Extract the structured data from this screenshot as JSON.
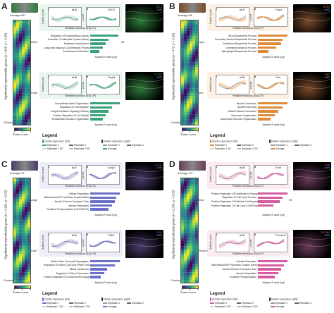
{
  "panels": [
    {
      "letter": "A",
      "avg_label": "Average HP",
      "ylabel": "Significantly reproducible genes (n = 955, p < 0.05)",
      "accent": "#3aa37a",
      "light": "#bfe6cf",
      "img_color": "#2d7a3a",
      "genes": [
        "Kif1D",
        "Pcgf4"
      ],
      "top": {
        "cluster": "cl.4",
        "gene": "Kif1D",
        "cl2": "cl.4"
      },
      "bot": {
        "cluster": "cl.5",
        "gene": "Pcgf4",
        "cl2": "cl.5"
      },
      "micro_top": [
        "KIF1D",
        "DAPI"
      ],
      "micro_bot": [
        "PCGF4",
        "DAPI"
      ],
      "go_top": [
        "Regulation Of Endopeptidase Activity",
        "Activation Of Adenylate Cyclase Activity",
        "Epidermis Development",
        "Long-chain fatty-acyl-CoA Metabolic Process",
        "Keratinocyte Proliferation"
      ],
      "go_top_vals": [
        0.9,
        0.6,
        0.5,
        0.4,
        0.3
      ],
      "go_bot": [
        "Extracellular Matrix Organization",
        "Regulation Of Cell Migration",
        "Integrin-Mediated Signaling Pathway",
        "Positive Regulation Of Cell Motility",
        "Extracellular Structure Organization"
      ],
      "go_bot_vals": [
        0.95,
        0.7,
        0.6,
        0.5,
        0.4
      ],
      "ns_top": "NS"
    },
    {
      "letter": "B",
      "avg_label": "Average IM",
      "ylabel": "Significantly reproducible genes (n = 473, p < 0.05)",
      "accent": "#e08b3a",
      "light": "#f5d2ae",
      "img_color": "#7a4a2a",
      "genes": [
        "Hopx",
        "Des"
      ],
      "top": {
        "cluster": "cl.2",
        "gene": "Hopx",
        "cl2": "cl.2"
      },
      "bot": {
        "cluster": "cl.6",
        "gene": "Des",
        "cl2": "cl.6"
      },
      "micro_top": [
        "HOPX",
        "DAPI"
      ],
      "micro_bot": [
        "DES",
        "DAPI"
      ],
      "go_top": [
        "Sterol Biosynthetic Process",
        "Secondary Alcohol Biosynthetic Process",
        "Cholesterol Biosynthetic Process",
        "Cholesterol Metabolic Process",
        "Sphingolipid Biosynthetic Process"
      ],
      "go_top_vals": [
        0.95,
        0.8,
        0.75,
        0.6,
        0.35
      ],
      "go_bot": [
        "Muscle Contraction",
        "Myofibril Assembly",
        "Striated Muscle Contraction",
        "Sarcomere Organization",
        "Actomyosin Structure Organization"
      ],
      "go_bot_vals": [
        0.95,
        0.8,
        0.65,
        0.55,
        0.4
      ],
      "ns_top": ""
    },
    {
      "letter": "C",
      "avg_label": "Average VF",
      "ylabel": "Significantly reproducible genes (n = 4,301, p < 0.05)",
      "accent": "#6a6fc9",
      "light": "#c9cbee",
      "img_color": "#4a3a6a",
      "genes": [
        "Actg2",
        "Cdk4"
      ],
      "top": {
        "cluster": "cl.2",
        "gene": "Actg2",
        "cl2": "cl.2"
      },
      "bot": {
        "cluster": "cl.4",
        "gene": "Cdk4",
        "cl2": "cl.4"
      },
      "micro_top": [
        "ACTG2",
        "DAPI"
      ],
      "micro_bot": [
        "CDK4",
        "DAPI"
      ],
      "go_top": [
        "Cellular Respiration",
        "Mitochondrial ATP Synthesis Coupled Electron Transport",
        "Aerobic Electron Transport Chain",
        "Aerobic Respiration",
        "Oxidative Phosphorylation (GO:0006119)"
      ],
      "go_top_vals": [
        0.95,
        0.85,
        0.8,
        0.7,
        0.6
      ],
      "go_bot": [
        "Mitotic Sister Chromatid Segregation",
        "Regulation Of Mitotic Cell Cycle Phase Transition",
        "Mitotic Cytokinesis",
        "Regulation Of Gene Expression",
        "Positive Regulation Of Canonical Wnt Signaling Pathway"
      ],
      "go_bot_vals": [
        0.95,
        0.8,
        0.55,
        0.45,
        0.35
      ],
      "ns_top": ""
    },
    {
      "letter": "D",
      "avg_label": "Average OT",
      "ylabel": "Significantly reproducible genes (n = 2,706, p < 0.05)",
      "accent": "#d65aa0",
      "light": "#f2c6dd",
      "img_color": "#6a3a5a",
      "genes": [
        "Emb",
        "Pecam1"
      ],
      "top": {
        "cluster": "cl.8",
        "gene": "Emb",
        "cl2": "cl.8"
      },
      "bot": {
        "cluster": "cl.0",
        "gene": "Pecam1",
        "cl2": "cl.0"
      },
      "micro_top": [
        "EMB",
        "DAPI"
      ],
      "micro_bot": [
        "PECAM1",
        "DAPI"
      ],
      "go_top": [
        "Positive Regulation Of Endothelial Cell Apoptotic Process",
        "Regulation Of Cell Cycle Process",
        "Positive Regulation Of Epithelial Cell Apoptotic Process",
        "Positive Regulation Of Cell Cycle G2/M Phase Transition",
        ""
      ],
      "go_top_vals": [
        0.95,
        0.8,
        0.7,
        0.5,
        0
      ],
      "go_bot": [
        "Cellular Respiration",
        "Mitochondrial ATP Synthesis Coupled Electron Transport",
        "Aerobic Electron Transport Chain",
        "Aerobic Respiration",
        "Oxidative Phosphorylation"
      ],
      "go_bot_vals": [
        0.95,
        0.85,
        0.75,
        0.65,
        0.55
      ],
      "ns_top": "NS"
    }
  ],
  "common": {
    "xlabel": "Relative sections (Epi-LP)",
    "ylabel_scaled": "Scaled z-score",
    "ylabel_z": "z-score",
    "go_x": "Adjusted P-value (log)",
    "go_y": "GO Biological Process",
    "legend": "Legend",
    "leg_left": "Cluster expression (left)",
    "leg_right": "Marker expression (right)",
    "rep1": "Replicate 1",
    "rep2": "Replicate 2",
    "rep1sd": "Replicate 1 SD",
    "rep2sd": "Replicate 2 SD",
    "average": "Average",
    "clusters": "Clusters",
    "cb_ticks": [
      "-4",
      "0",
      "4"
    ],
    "cb_label": "Scaled z-score",
    "i": "i",
    "ii": "ii"
  }
}
